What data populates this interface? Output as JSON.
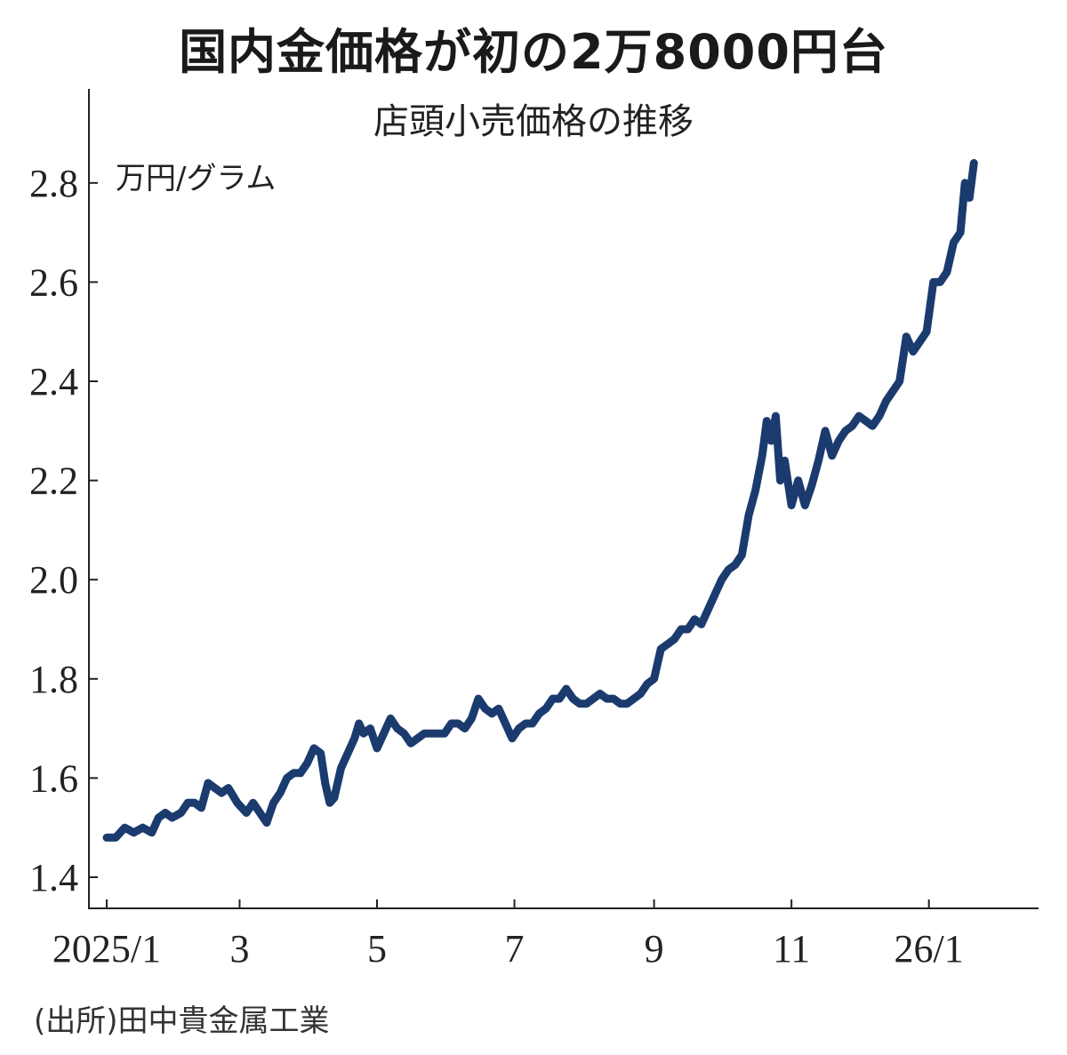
{
  "header": {
    "title": "国内金価格が初の2万8000円台",
    "subtitle": "店頭小売価格の推移"
  },
  "source": "(出所)田中貴金属工業",
  "chart_data": {
    "type": "line",
    "unit_label": "万円/グラム",
    "ylim": [
      1.4,
      2.9
    ],
    "y_ticks": [
      {
        "value": 1.4,
        "label": "1.4"
      },
      {
        "value": 1.6,
        "label": "1.6"
      },
      {
        "value": 1.8,
        "label": "1.8"
      },
      {
        "value": 2.0,
        "label": "2.0"
      },
      {
        "value": 2.2,
        "label": "2.2"
      },
      {
        "value": 2.4,
        "label": "2.4"
      },
      {
        "value": 2.6,
        "label": "2.6"
      },
      {
        "value": 2.8,
        "label": "2.8"
      }
    ],
    "xlim": [
      "2025-01-01",
      "2026-02-10"
    ],
    "x_ticks": [
      {
        "date": "2025-01-01",
        "label": "2025/1"
      },
      {
        "date": "2025-03-01",
        "label": "3"
      },
      {
        "date": "2025-05-01",
        "label": "5"
      },
      {
        "date": "2025-07-01",
        "label": "7"
      },
      {
        "date": "2025-09-01",
        "label": "9"
      },
      {
        "date": "2025-11-01",
        "label": "11"
      },
      {
        "date": "2026-01-01",
        "label": "26/1"
      }
    ],
    "color": "#1b3b6f",
    "grid": false,
    "series": [
      {
        "points": [
          [
            "2025-01-01",
            1.48
          ],
          [
            "2025-01-05",
            1.48
          ],
          [
            "2025-01-09",
            1.5
          ],
          [
            "2025-01-13",
            1.49
          ],
          [
            "2025-01-17",
            1.5
          ],
          [
            "2025-01-21",
            1.49
          ],
          [
            "2025-01-24",
            1.52
          ],
          [
            "2025-01-27",
            1.53
          ],
          [
            "2025-01-30",
            1.52
          ],
          [
            "2025-02-03",
            1.53
          ],
          [
            "2025-02-06",
            1.55
          ],
          [
            "2025-02-09",
            1.55
          ],
          [
            "2025-02-12",
            1.54
          ],
          [
            "2025-02-15",
            1.59
          ],
          [
            "2025-02-18",
            1.58
          ],
          [
            "2025-02-21",
            1.57
          ],
          [
            "2025-02-24",
            1.58
          ],
          [
            "2025-02-28",
            1.55
          ],
          [
            "2025-03-04",
            1.53
          ],
          [
            "2025-03-07",
            1.55
          ],
          [
            "2025-03-10",
            1.53
          ],
          [
            "2025-03-13",
            1.51
          ],
          [
            "2025-03-16",
            1.55
          ],
          [
            "2025-03-19",
            1.57
          ],
          [
            "2025-03-22",
            1.6
          ],
          [
            "2025-03-25",
            1.61
          ],
          [
            "2025-03-28",
            1.61
          ],
          [
            "2025-03-31",
            1.63
          ],
          [
            "2025-04-03",
            1.66
          ],
          [
            "2025-04-06",
            1.65
          ],
          [
            "2025-04-08",
            1.59
          ],
          [
            "2025-04-10",
            1.55
          ],
          [
            "2025-04-12",
            1.56
          ],
          [
            "2025-04-15",
            1.62
          ],
          [
            "2025-04-18",
            1.65
          ],
          [
            "2025-04-21",
            1.68
          ],
          [
            "2025-04-23",
            1.71
          ],
          [
            "2025-04-25",
            1.69
          ],
          [
            "2025-04-28",
            1.7
          ],
          [
            "2025-05-01",
            1.66
          ],
          [
            "2025-05-04",
            1.69
          ],
          [
            "2025-05-07",
            1.72
          ],
          [
            "2025-05-10",
            1.7
          ],
          [
            "2025-05-13",
            1.69
          ],
          [
            "2025-05-16",
            1.67
          ],
          [
            "2025-05-19",
            1.68
          ],
          [
            "2025-05-22",
            1.69
          ],
          [
            "2025-05-25",
            1.69
          ],
          [
            "2025-05-28",
            1.69
          ],
          [
            "2025-05-31",
            1.69
          ],
          [
            "2025-06-03",
            1.71
          ],
          [
            "2025-06-06",
            1.71
          ],
          [
            "2025-06-09",
            1.7
          ],
          [
            "2025-06-12",
            1.72
          ],
          [
            "2025-06-15",
            1.76
          ],
          [
            "2025-06-18",
            1.74
          ],
          [
            "2025-06-21",
            1.73
          ],
          [
            "2025-06-24",
            1.74
          ],
          [
            "2025-06-27",
            1.71
          ],
          [
            "2025-06-30",
            1.68
          ],
          [
            "2025-07-03",
            1.7
          ],
          [
            "2025-07-06",
            1.71
          ],
          [
            "2025-07-09",
            1.71
          ],
          [
            "2025-07-12",
            1.73
          ],
          [
            "2025-07-15",
            1.74
          ],
          [
            "2025-07-18",
            1.76
          ],
          [
            "2025-07-21",
            1.76
          ],
          [
            "2025-07-24",
            1.78
          ],
          [
            "2025-07-27",
            1.76
          ],
          [
            "2025-07-30",
            1.75
          ],
          [
            "2025-08-02",
            1.75
          ],
          [
            "2025-08-05",
            1.76
          ],
          [
            "2025-08-08",
            1.77
          ],
          [
            "2025-08-11",
            1.76
          ],
          [
            "2025-08-14",
            1.76
          ],
          [
            "2025-08-17",
            1.75
          ],
          [
            "2025-08-20",
            1.75
          ],
          [
            "2025-08-23",
            1.76
          ],
          [
            "2025-08-26",
            1.77
          ],
          [
            "2025-08-29",
            1.79
          ],
          [
            "2025-09-01",
            1.8
          ],
          [
            "2025-09-04",
            1.86
          ],
          [
            "2025-09-07",
            1.87
          ],
          [
            "2025-09-10",
            1.88
          ],
          [
            "2025-09-13",
            1.9
          ],
          [
            "2025-09-16",
            1.9
          ],
          [
            "2025-09-19",
            1.92
          ],
          [
            "2025-09-22",
            1.91
          ],
          [
            "2025-09-25",
            1.94
          ],
          [
            "2025-09-28",
            1.97
          ],
          [
            "2025-10-01",
            2.0
          ],
          [
            "2025-10-04",
            2.02
          ],
          [
            "2025-10-07",
            2.03
          ],
          [
            "2025-10-10",
            2.05
          ],
          [
            "2025-10-13",
            2.13
          ],
          [
            "2025-10-16",
            2.18
          ],
          [
            "2025-10-19",
            2.25
          ],
          [
            "2025-10-21",
            2.32
          ],
          [
            "2025-10-23",
            2.28
          ],
          [
            "2025-10-25",
            2.33
          ],
          [
            "2025-10-27",
            2.2
          ],
          [
            "2025-10-29",
            2.24
          ],
          [
            "2025-11-01",
            2.15
          ],
          [
            "2025-11-04",
            2.2
          ],
          [
            "2025-11-07",
            2.15
          ],
          [
            "2025-11-10",
            2.19
          ],
          [
            "2025-11-13",
            2.24
          ],
          [
            "2025-11-16",
            2.3
          ],
          [
            "2025-11-19",
            2.25
          ],
          [
            "2025-11-22",
            2.28
          ],
          [
            "2025-11-25",
            2.3
          ],
          [
            "2025-11-28",
            2.31
          ],
          [
            "2025-12-01",
            2.33
          ],
          [
            "2025-12-04",
            2.32
          ],
          [
            "2025-12-07",
            2.31
          ],
          [
            "2025-12-10",
            2.33
          ],
          [
            "2025-12-13",
            2.36
          ],
          [
            "2025-12-16",
            2.38
          ],
          [
            "2025-12-19",
            2.4
          ],
          [
            "2025-12-22",
            2.49
          ],
          [
            "2025-12-25",
            2.46
          ],
          [
            "2025-12-28",
            2.48
          ],
          [
            "2025-12-31",
            2.5
          ],
          [
            "2026-01-03",
            2.6
          ],
          [
            "2026-01-06",
            2.6
          ],
          [
            "2026-01-09",
            2.62
          ],
          [
            "2026-01-12",
            2.68
          ],
          [
            "2026-01-15",
            2.7
          ],
          [
            "2026-01-17",
            2.8
          ],
          [
            "2026-01-19",
            2.77
          ],
          [
            "2026-01-21",
            2.84
          ]
        ]
      }
    ]
  }
}
